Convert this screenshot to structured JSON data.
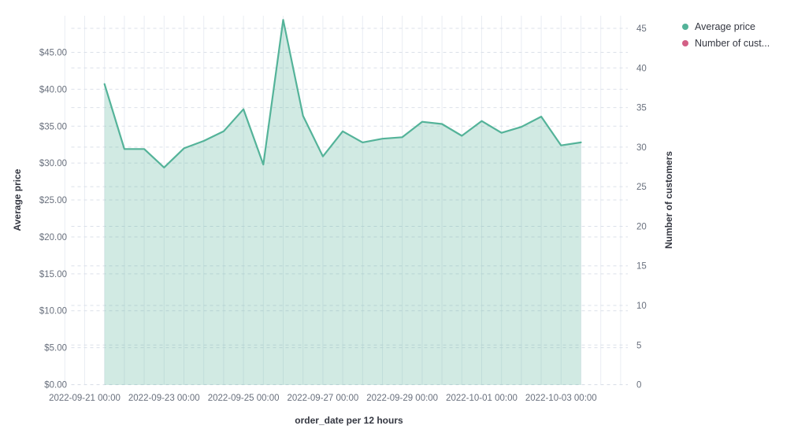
{
  "legend": {
    "position": "top-right",
    "items": [
      {
        "label": "Average price",
        "color": "#54B399"
      },
      {
        "label": "Number of cust...",
        "color": "#D36086"
      }
    ]
  },
  "colors": {
    "series_line": "#54B399",
    "series_fill": "#54B399",
    "series_fill_opacity": 0.27,
    "second_series": "#D36086",
    "tick_text": "#69707D",
    "axis_title_text": "#343741",
    "vertical_gridline": "#e9edf3",
    "dashed_gridline": "#dbe0e9",
    "background": "#ffffff"
  },
  "chart_data": {
    "type": "area",
    "title": "",
    "legend_position": "top-right",
    "grid": {
      "vertical_solid": true,
      "horizontal_dashed": true
    },
    "x": [
      "2022-09-21 12:00",
      "2022-09-22 00:00",
      "2022-09-22 12:00",
      "2022-09-23 00:00",
      "2022-09-23 12:00",
      "2022-09-24 00:00",
      "2022-09-24 12:00",
      "2022-09-25 00:00",
      "2022-09-25 12:00",
      "2022-09-26 00:00",
      "2022-09-26 12:00",
      "2022-09-27 00:00",
      "2022-09-27 12:00",
      "2022-09-28 00:00",
      "2022-09-28 12:00",
      "2022-09-29 00:00",
      "2022-09-29 12:00",
      "2022-09-30 00:00",
      "2022-09-30 12:00",
      "2022-10-01 00:00",
      "2022-10-01 12:00",
      "2022-10-02 00:00",
      "2022-10-02 12:00",
      "2022-10-03 00:00",
      "2022-10-03 12:00"
    ],
    "series": [
      {
        "name": "Average price",
        "axis": "left",
        "color": "#54B399",
        "values": [
          40.7,
          31.9,
          31.9,
          29.4,
          32.0,
          33.0,
          34.3,
          37.3,
          29.8,
          49.4,
          36.4,
          30.9,
          34.3,
          32.8,
          33.3,
          33.5,
          35.6,
          35.3,
          33.7,
          35.7,
          34.1,
          34.9,
          36.3,
          32.4,
          32.8
        ]
      },
      {
        "name": "Number of cust...",
        "axis": "right",
        "color": "#D36086",
        "values": []
      }
    ],
    "x_axis": {
      "title": "order_date per 12 hours",
      "tick_labels": [
        "2022-09-21 00:00",
        "2022-09-23 00:00",
        "2022-09-25 00:00",
        "2022-09-27 00:00",
        "2022-09-29 00:00",
        "2022-10-01 00:00",
        "2022-10-03 00:00"
      ]
    },
    "y_left_axis": {
      "title": "Average price",
      "range": [
        0,
        45
      ],
      "tick_values": [
        0,
        5,
        10,
        15,
        20,
        25,
        30,
        35,
        40,
        45
      ],
      "tick_labels": [
        "$0.00",
        "$5.00",
        "$10.00",
        "$15.00",
        "$20.00",
        "$25.00",
        "$30.00",
        "$35.00",
        "$40.00",
        "$45.00"
      ]
    },
    "y_right_axis": {
      "title": "Number of customers",
      "range": [
        0,
        45
      ],
      "tick_values": [
        0,
        5,
        10,
        15,
        20,
        25,
        30,
        35,
        40,
        45
      ],
      "tick_labels": [
        "0",
        "5",
        "10",
        "15",
        "20",
        "25",
        "30",
        "35",
        "40",
        "45"
      ]
    }
  }
}
